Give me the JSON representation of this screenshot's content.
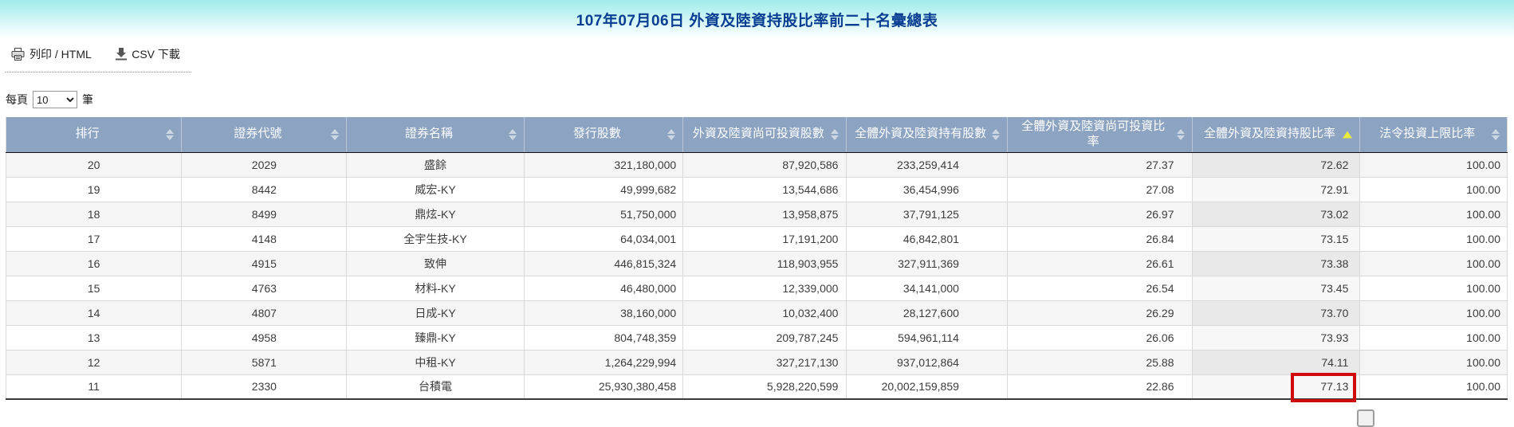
{
  "title": "107年07月06日 外資及陸資持股比率前二十名彙總表",
  "toolbar": {
    "print_label": "列印 / HTML",
    "csv_label": "CSV 下載"
  },
  "pager": {
    "prefix": "每頁",
    "selected": "10",
    "suffix": "筆"
  },
  "table": {
    "columns": [
      {
        "key": "rank",
        "label": "排行",
        "align": "center",
        "sort": "none"
      },
      {
        "key": "security-code",
        "label": "證券代號",
        "align": "center",
        "sort": "none"
      },
      {
        "key": "security-name",
        "label": "證券名稱",
        "align": "center",
        "sort": "none"
      },
      {
        "key": "issued-shares",
        "label": "發行股數",
        "align": "right",
        "sort": "none"
      },
      {
        "key": "investable-shares",
        "label": "外資及陸資尚可投資股數",
        "align": "right",
        "sort": "none"
      },
      {
        "key": "held-shares",
        "label": "全體外資及陸資持有股數",
        "align": "right",
        "sort": "none"
      },
      {
        "key": "investable-ratio",
        "label": "全體外資及陸資尚可投資比率",
        "align": "right",
        "sort": "none"
      },
      {
        "key": "holding-ratio",
        "label": "全體外資及陸資持股比率",
        "align": "right",
        "sort": "asc"
      },
      {
        "key": "legal-limit-ratio",
        "label": "法令投資上限比率",
        "align": "right",
        "sort": "none"
      }
    ],
    "sorted_col": 7,
    "rows": [
      [
        "20",
        "2029",
        "盛餘",
        "321,180,000",
        "87,920,586",
        "233,259,414",
        "27.37",
        "72.62",
        "100.00"
      ],
      [
        "19",
        "8442",
        "威宏-KY",
        "49,999,682",
        "13,544,686",
        "36,454,996",
        "27.08",
        "72.91",
        "100.00"
      ],
      [
        "18",
        "8499",
        "鼎炫-KY",
        "51,750,000",
        "13,958,875",
        "37,791,125",
        "26.97",
        "73.02",
        "100.00"
      ],
      [
        "17",
        "4148",
        "全宇生技-KY",
        "64,034,001",
        "17,191,200",
        "46,842,801",
        "26.84",
        "73.15",
        "100.00"
      ],
      [
        "16",
        "4915",
        "致伸",
        "446,815,324",
        "118,903,955",
        "327,911,369",
        "26.61",
        "73.38",
        "100.00"
      ],
      [
        "15",
        "4763",
        "材料-KY",
        "46,480,000",
        "12,339,000",
        "34,141,000",
        "26.54",
        "73.45",
        "100.00"
      ],
      [
        "14",
        "4807",
        "日成-KY",
        "38,160,000",
        "10,032,400",
        "28,127,600",
        "26.29",
        "73.70",
        "100.00"
      ],
      [
        "13",
        "4958",
        "臻鼎-KY",
        "804,748,359",
        "209,787,245",
        "594,961,114",
        "26.06",
        "73.93",
        "100.00"
      ],
      [
        "12",
        "5871",
        "中租-KY",
        "1,264,229,994",
        "327,217,130",
        "937,012,864",
        "25.88",
        "74.11",
        "100.00"
      ],
      [
        "11",
        "2330",
        "台積電",
        "25,930,380,458",
        "5,928,220,599",
        "20,002,159,859",
        "22.86",
        "77.13",
        "100.00"
      ]
    ],
    "highlight": {
      "row": 9,
      "col": 7
    }
  },
  "colors": {
    "banner_top": "#9feceb",
    "title_color": "#0a3e92",
    "header_bg": "#8ca3c2",
    "sort_active": "#e9e93e",
    "highlight": "#cf0a0a"
  }
}
